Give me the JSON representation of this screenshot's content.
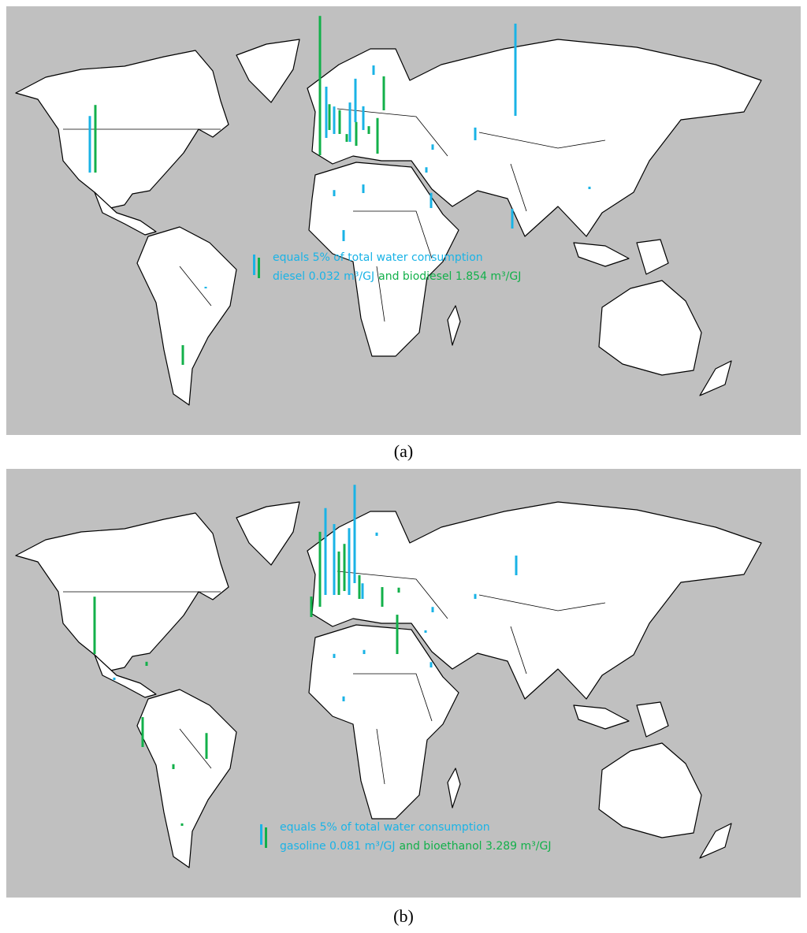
{
  "panels": [
    {
      "label": "(a)",
      "legend_line1": "equals 5% of total water consumption",
      "legend_fossil": "diesel 0.032 m³/GJ",
      "legend_bio": "and biodiesel 1.854 m³/GJ",
      "fossil_color": "#1ab3e6",
      "bio_color": "#12b04a",
      "fossil_values": [
        13.8,
        12.5,
        6.7,
        9.6,
        10.6,
        2.3,
        5.8,
        22.5,
        3.1,
        1.3,
        1.3,
        2.1,
        1.5,
        3.7,
        4.8,
        0.6,
        2.7,
        0.4
      ],
      "bio_values": [
        16.5,
        34.0,
        5.8,
        6.3,
        8.3,
        8.7,
        5.8,
        1.9,
        4.8,
        1.9
      ]
    },
    {
      "label": "(b)",
      "legend_line1": "equals 5% of total water consumption",
      "legend_fossil": "gasoline 0.081 m³/GJ",
      "legend_bio": "and bioethanol 3.289 m³/GJ",
      "fossil_color": "#1ab3e6",
      "bio_color": "#12b04a",
      "fossil_values": [
        21.2,
        17.3,
        16.3,
        24.0,
        0.8,
        3.8,
        4.8,
        1.2,
        1.3,
        0.6,
        1.0,
        1.0,
        1.3,
        1.2,
        0.6
      ],
      "bio_values": [
        14.0,
        18.3,
        10.6,
        11.5,
        5.0,
        9.6,
        7.3,
        6.3,
        1.2,
        0.6,
        1.0,
        5.8,
        4.8,
        1.2
      ]
    }
  ]
}
